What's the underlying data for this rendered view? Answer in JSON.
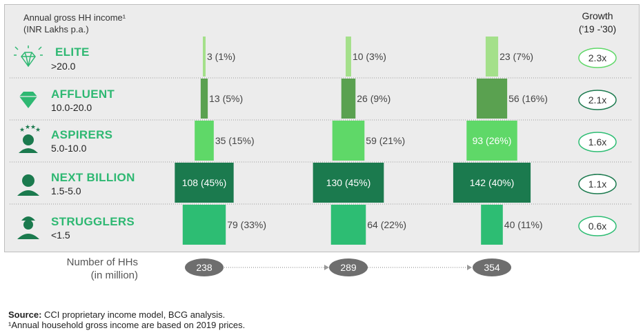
{
  "header": {
    "income_title": "Annual gross HH income¹",
    "income_unit": "(INR Lakhs p.a.)",
    "growth_title": "Growth",
    "growth_period": "('19 -'30)"
  },
  "segments": [
    {
      "name": "ELITE",
      "range": ">20.0",
      "icon": "diamond-outline-icon",
      "growth": "2.3x"
    },
    {
      "name": "AFFLUENT",
      "range": "10.0-20.0",
      "icon": "diamond-solid-icon",
      "growth": "2.1x"
    },
    {
      "name": "ASPIRERS",
      "range": "5.0-10.0",
      "icon": "person-stars-icon",
      "growth": "1.6x"
    },
    {
      "name": "NEXT BILLION",
      "range": "1.5-5.0",
      "icon": "person-icon",
      "growth": "1.1x"
    },
    {
      "name": "STRUGGLERS",
      "range": "<1.5",
      "icon": "worker-cap-icon",
      "growth": "0.6x"
    }
  ],
  "chart_data": {
    "type": "bar",
    "categories": [
      "ELITE",
      "AFFLUENT",
      "ASPIRERS",
      "NEXT BILLION",
      "STRUGGLERS"
    ],
    "unit": "Number of HHs (in million)",
    "series": [
      {
        "values": [
          3,
          13,
          35,
          108,
          79
        ],
        "shares": [
          "1%",
          "5%",
          "15%",
          "45%",
          "33%"
        ],
        "labels": [
          "3 (1%)",
          "13 (5%)",
          "35 (15%)",
          "108 (45%)",
          "79 (33%)"
        ],
        "total": "238"
      },
      {
        "values": [
          10,
          26,
          59,
          130,
          64
        ],
        "shares": [
          "3%",
          "9%",
          "21%",
          "45%",
          "22%"
        ],
        "labels": [
          "10 (3%)",
          "26 (9%)",
          "59 (21%)",
          "130 (45%)",
          "64 (22%)"
        ],
        "total": "289"
      },
      {
        "values": [
          23,
          56,
          93,
          142,
          40
        ],
        "shares": [
          "7%",
          "16%",
          "26%",
          "40%",
          "11%"
        ],
        "labels": [
          "23 (7%)",
          "56 (16%)",
          "93 (26%)",
          "142 (40%)",
          "40 (11%)"
        ],
        "total": "354"
      }
    ],
    "colors": [
      "#a4e08a",
      "#5aa150",
      "#5fd868",
      "#1b7a4e",
      "#2dbd73"
    ],
    "growth_border_colors": [
      "#5fd868",
      "#1b7a4e",
      "#2dbd73",
      "#1b7a4e",
      "#2dbd73"
    ]
  },
  "totals_label": {
    "line1": "Number of HHs",
    "line2": "(in million)"
  },
  "footer": {
    "source_label": "Source:",
    "source_text": " CCI proprietary income model, BCG analysis.",
    "footnote": "¹Annual household gross income are based on 2019 prices."
  }
}
